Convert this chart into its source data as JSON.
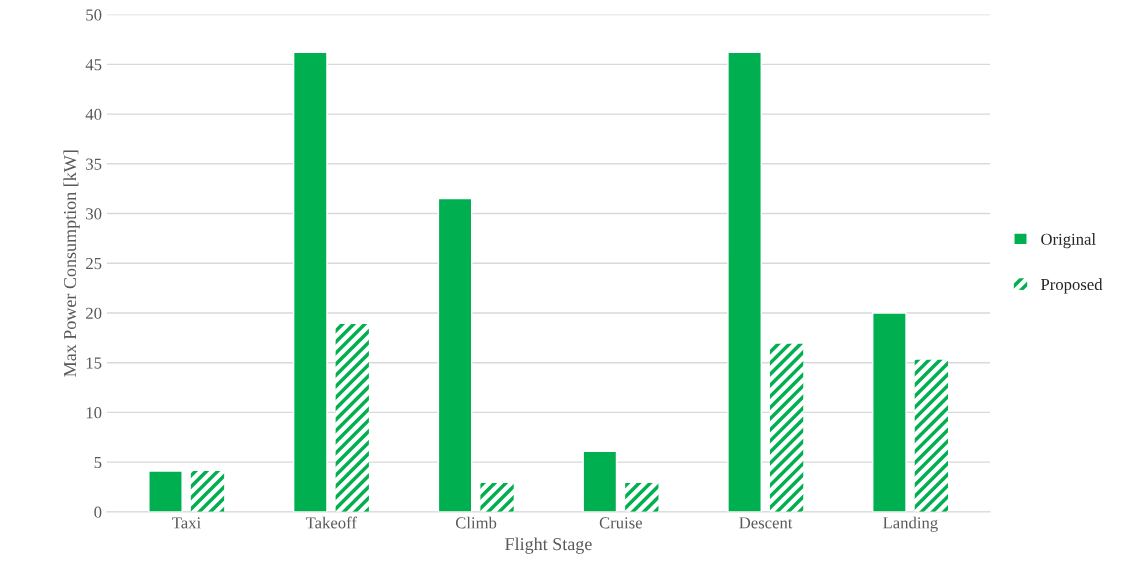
{
  "chart_data": {
    "type": "bar",
    "xlabel": "Flight Stage",
    "ylabel": "Max Power Consumption [kW]",
    "categories": [
      "Taxi",
      "Takeoff",
      "Climb",
      "Cruise",
      "Descent",
      "Landing"
    ],
    "series": [
      {
        "name": "Original",
        "color": "#00b050",
        "values": [
          4.1,
          46.2,
          31.5,
          6.1,
          46.2,
          20.0
        ]
      },
      {
        "name": "Proposed",
        "color": "#00b050",
        "values": [
          4.1,
          18.9,
          2.9,
          2.9,
          16.9,
          15.3
        ]
      }
    ],
    "ylim": [
      0,
      50
    ],
    "yticks": [
      0,
      5,
      10,
      15,
      20,
      25,
      30,
      35,
      40,
      45,
      50
    ],
    "grid": "y",
    "legend": "right"
  }
}
